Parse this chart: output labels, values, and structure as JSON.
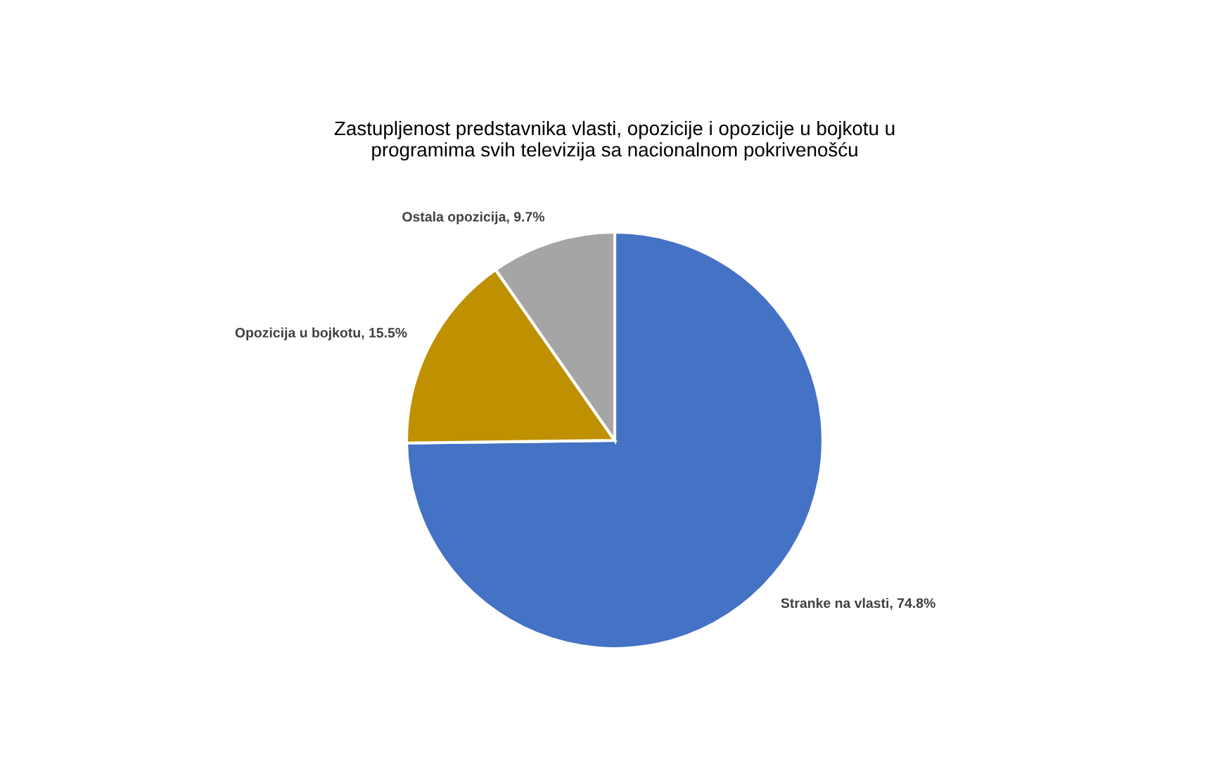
{
  "chart_data": {
    "type": "pie",
    "title": "Zastupljenost predstavnika vlasti, opozicije i opozicije u bojkotu u programima svih televizija sa nacionalnom pokrivenošću",
    "categories": [
      "Stranke na vlasti",
      "Opozicija u bojkotu",
      "Ostala opozicija"
    ],
    "values": [
      74.8,
      15.5,
      9.7
    ],
    "colors": [
      "#4472c4",
      "#bf9000",
      "#a5a5a5"
    ],
    "value_labels": [
      "74.8%",
      "15.5%",
      "9.7%"
    ],
    "legend": false
  }
}
